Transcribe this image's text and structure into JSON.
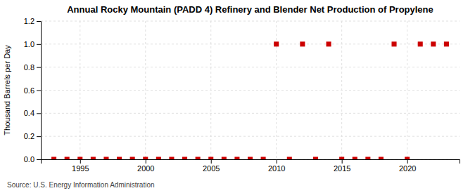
{
  "chart_data": {
    "type": "scatter",
    "title": "Annual Rocky Mountain (PADD 4) Refinery and Blender Net Production of Propylene",
    "ylabel": "Thousand Barrels per Day",
    "annotations": [
      "Source: U.S. Energy Information Administration"
    ],
    "x": [
      1993,
      1994,
      1995,
      1996,
      1997,
      1998,
      1999,
      2000,
      2001,
      2002,
      2003,
      2004,
      2005,
      2006,
      2007,
      2008,
      2009,
      2010,
      2011,
      2012,
      2013,
      2014,
      2015,
      2016,
      2017,
      2018,
      2019,
      2020,
      2021,
      2022,
      2023
    ],
    "values": [
      0,
      0,
      0,
      0,
      0,
      0,
      0,
      0,
      0,
      0,
      0,
      0,
      0,
      0,
      0,
      0,
      0,
      1,
      0,
      1,
      0,
      1,
      0,
      0,
      0,
      0,
      1,
      0,
      1,
      1,
      1
    ],
    "color": "#cc0000",
    "marker": "square",
    "xlim": [
      1992,
      2024
    ],
    "xticks": [
      1995,
      2000,
      2005,
      2010,
      2015,
      2020
    ],
    "ylim": [
      0,
      1.2
    ],
    "yticks": [
      {
        "value": 0.0,
        "label": "0.0"
      },
      0.2,
      0.4,
      0.6,
      0.8,
      {
        "value": 1.0,
        "label": "1.0"
      },
      1.2
    ],
    "grid": true
  }
}
